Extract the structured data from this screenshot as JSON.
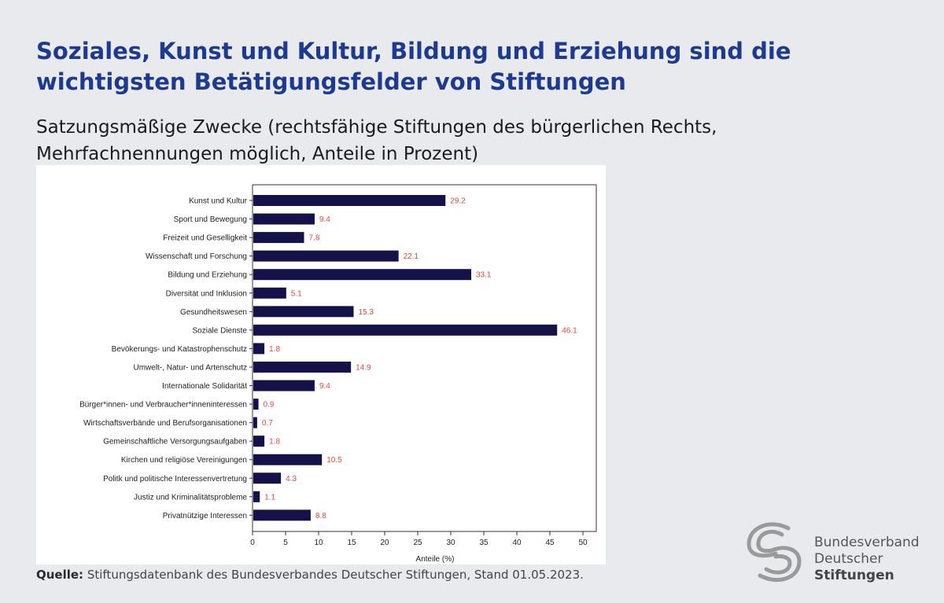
{
  "header": {
    "title": "Soziales, Kunst und Kultur, Bildung und Erziehung sind die wichtigsten Betätigungsfelder von Stiftungen",
    "subtitle": "Satzungsmäßige Zwecke (rechtsfähige Stiftungen des bürgerlichen Rechts, Mehrfachnennungen möglich, Anteile in Prozent)"
  },
  "source": {
    "label": "Quelle:",
    "text": "Stiftungsdatenbank des Bundesverbandes Deutscher Stiftungen, Stand 01.05.2023."
  },
  "logo": {
    "line1": "Bundesverband",
    "line2": "Deutscher",
    "line3": "Stiftungen"
  },
  "colors": {
    "bar": "#15124a",
    "value_label": "#e8483f",
    "title": "#1d3a8e"
  },
  "chart_data": {
    "type": "bar",
    "orientation": "horizontal",
    "categories": [
      "Kunst und Kultur",
      "Sport und Bewegung",
      "Freizeit und Geselligkeit",
      "Wissenschaft und Forschung",
      "Bildung und Erziehung",
      "Diversität und Inklusion",
      "Gesundheitswesen",
      "Soziale Dienste",
      "Bevökerungs- und Katastrophenschutz",
      "Umwelt-, Natur- und Artenschutz",
      "Internationale Solidarität",
      "Bürger*innen- und Verbraucher*inneninteressen",
      "Wirtschaftsverbände und Berufsorganisationen",
      "Gemeinschaftliche Versorgungsaufgaben",
      "Kirchen und religiöse Vereinigungen",
      "Politk und politische Interessenvertretung",
      "Justiz und Kriminalitätsprobleme",
      "Privatnützige Interessen"
    ],
    "values": [
      29.2,
      9.4,
      7.8,
      22.1,
      33.1,
      5.1,
      15.3,
      46.1,
      1.8,
      14.9,
      9.4,
      0.9,
      0.7,
      1.8,
      10.5,
      4.3,
      1.1,
      8.8
    ],
    "value_labels": [
      "29.2",
      "9.4",
      "7.8",
      "22.1",
      "33.1",
      "5.1",
      "15.3",
      "46.1",
      "1.8",
      "14.9",
      "9.4",
      "0.9",
      "0.7",
      "1.8",
      "10.5",
      "4.3",
      "1.1",
      "8.8"
    ],
    "xlabel": "Anteile (%)",
    "ylabel": "",
    "xlim": [
      0,
      50
    ],
    "xticks": [
      "0",
      "5",
      "10",
      "15",
      "20",
      "25",
      "30",
      "35",
      "40",
      "45",
      "50"
    ],
    "grid": false,
    "legend": "none"
  }
}
